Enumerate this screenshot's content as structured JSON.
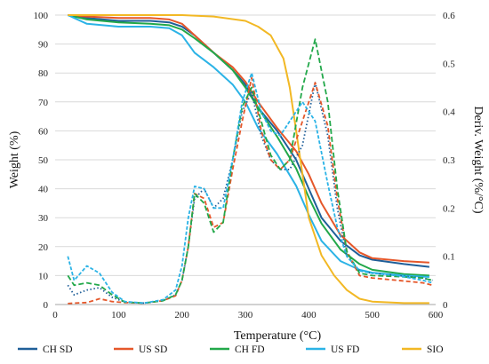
{
  "chart_data": {
    "type": "line",
    "xlabel": "Temperature (°C)",
    "ylabel_left": "Weight (%)",
    "ylabel_right": "Deriv. Weight (%/°C)",
    "xlim": [
      0,
      600
    ],
    "ylim_left": [
      0,
      100
    ],
    "ylim_right": [
      0,
      0.6
    ],
    "x_ticks": [
      0,
      100,
      200,
      300,
      400,
      500,
      600
    ],
    "y_left_ticks": [
      0,
      10,
      20,
      30,
      40,
      50,
      60,
      70,
      80,
      90,
      100
    ],
    "y_right_ticks": [
      0,
      0.1,
      0.2,
      0.3,
      0.4,
      0.5,
      0.6
    ],
    "legend_position": "bottom",
    "weight_series": [
      {
        "name": "CH SD",
        "color": "#1f5f99",
        "x": [
          20,
          50,
          100,
          150,
          180,
          200,
          220,
          250,
          280,
          300,
          320,
          350,
          380,
          400,
          420,
          450,
          480,
          500,
          550,
          590
        ],
        "y": [
          100,
          99,
          98,
          98,
          97.5,
          96,
          93,
          87,
          81,
          76,
          68,
          60,
          50,
          40,
          30,
          22,
          17,
          15.5,
          14,
          13
        ]
      },
      {
        "name": "US SD",
        "color": "#e5572a",
        "x": [
          20,
          50,
          100,
          150,
          180,
          200,
          220,
          250,
          280,
          300,
          320,
          350,
          380,
          400,
          420,
          450,
          480,
          500,
          550,
          590
        ],
        "y": [
          100,
          99.5,
          99,
          99,
          98.5,
          97,
          93,
          87,
          82,
          77,
          70,
          61,
          53,
          45,
          35,
          24,
          18,
          16,
          15,
          14.5
        ]
      },
      {
        "name": "CH FD",
        "color": "#22a84a",
        "x": [
          20,
          50,
          100,
          150,
          180,
          200,
          220,
          250,
          280,
          300,
          320,
          350,
          380,
          400,
          420,
          450,
          480,
          500,
          550,
          590
        ],
        "y": [
          100,
          98.5,
          97.5,
          97,
          96.5,
          95,
          92,
          87,
          81,
          75,
          68,
          58,
          47,
          37,
          28,
          19,
          14,
          12,
          10.5,
          10
        ]
      },
      {
        "name": "US FD",
        "color": "#2bb3e6",
        "x": [
          20,
          50,
          100,
          150,
          180,
          200,
          220,
          250,
          280,
          300,
          320,
          350,
          380,
          400,
          420,
          450,
          480,
          500,
          550,
          590
        ],
        "y": [
          100,
          97,
          96,
          96,
          95.5,
          93,
          87,
          82,
          76,
          70,
          61,
          52,
          41,
          31,
          22,
          15,
          12,
          11,
          10,
          9.5
        ]
      },
      {
        "name": "SIO",
        "color": "#f2b824",
        "x": [
          20,
          100,
          200,
          250,
          300,
          320,
          340,
          360,
          370,
          380,
          390,
          400,
          420,
          440,
          460,
          480,
          500,
          550,
          590
        ],
        "y": [
          100,
          100,
          100,
          99.5,
          98,
          96,
          93,
          85,
          75,
          60,
          45,
          30,
          17,
          10,
          5,
          2,
          1,
          0.5,
          0.5
        ]
      }
    ],
    "deriv_series": [
      {
        "name": "CH SD",
        "color": "#1f5f99",
        "dash": "1.5 2.5",
        "x": [
          20,
          30,
          50,
          70,
          90,
          110,
          140,
          170,
          190,
          200,
          210,
          220,
          235,
          250,
          265,
          280,
          295,
          310,
          325,
          340,
          355,
          370,
          390,
          410,
          430,
          445,
          460,
          480,
          500,
          540,
          580,
          595
        ],
        "y": [
          0.04,
          0.02,
          0.03,
          0.035,
          0.015,
          0.005,
          0.003,
          0.008,
          0.02,
          0.05,
          0.12,
          0.22,
          0.24,
          0.2,
          0.22,
          0.3,
          0.4,
          0.44,
          0.35,
          0.3,
          0.28,
          0.28,
          0.33,
          0.46,
          0.35,
          0.2,
          0.1,
          0.07,
          0.065,
          0.06,
          0.055,
          0.05
        ]
      },
      {
        "name": "US SD",
        "color": "#e5572a",
        "dash": "5 3",
        "x": [
          20,
          30,
          50,
          70,
          90,
          110,
          140,
          170,
          190,
          200,
          210,
          220,
          235,
          250,
          265,
          280,
          295,
          310,
          325,
          340,
          355,
          370,
          390,
          410,
          430,
          445,
          460,
          480,
          500,
          540,
          580,
          595
        ],
        "y": [
          0.002,
          0.003,
          0.004,
          0.012,
          0.006,
          0.004,
          0.003,
          0.008,
          0.018,
          0.05,
          0.12,
          0.23,
          0.22,
          0.16,
          0.17,
          0.28,
          0.38,
          0.47,
          0.36,
          0.3,
          0.28,
          0.3,
          0.38,
          0.46,
          0.37,
          0.22,
          0.11,
          0.06,
          0.055,
          0.05,
          0.045,
          0.04
        ]
      },
      {
        "name": "CH FD",
        "color": "#22a84a",
        "dash": "6 3",
        "x": [
          20,
          30,
          50,
          70,
          90,
          110,
          140,
          170,
          190,
          200,
          210,
          220,
          235,
          250,
          265,
          280,
          295,
          310,
          325,
          340,
          355,
          370,
          390,
          410,
          430,
          445,
          460,
          480,
          500,
          540,
          580,
          595
        ],
        "y": [
          0.06,
          0.04,
          0.045,
          0.04,
          0.02,
          0.005,
          0.003,
          0.008,
          0.02,
          0.05,
          0.12,
          0.23,
          0.21,
          0.15,
          0.17,
          0.3,
          0.41,
          0.45,
          0.38,
          0.31,
          0.28,
          0.3,
          0.45,
          0.55,
          0.42,
          0.24,
          0.11,
          0.065,
          0.06,
          0.058,
          0.055,
          0.05
        ]
      },
      {
        "name": "US FD",
        "color": "#2bb3e6",
        "dash": "4 2",
        "x": [
          20,
          30,
          50,
          70,
          90,
          110,
          140,
          170,
          190,
          200,
          210,
          220,
          235,
          250,
          265,
          280,
          295,
          310,
          325,
          340,
          355,
          370,
          390,
          410,
          430,
          445,
          460,
          480,
          500,
          540,
          580,
          595
        ],
        "y": [
          0.1,
          0.05,
          0.08,
          0.065,
          0.025,
          0.006,
          0.003,
          0.01,
          0.03,
          0.08,
          0.18,
          0.245,
          0.24,
          0.2,
          0.2,
          0.3,
          0.42,
          0.48,
          0.4,
          0.36,
          0.35,
          0.38,
          0.42,
          0.38,
          0.25,
          0.16,
          0.1,
          0.07,
          0.065,
          0.06,
          0.05,
          0.045
        ]
      }
    ]
  }
}
